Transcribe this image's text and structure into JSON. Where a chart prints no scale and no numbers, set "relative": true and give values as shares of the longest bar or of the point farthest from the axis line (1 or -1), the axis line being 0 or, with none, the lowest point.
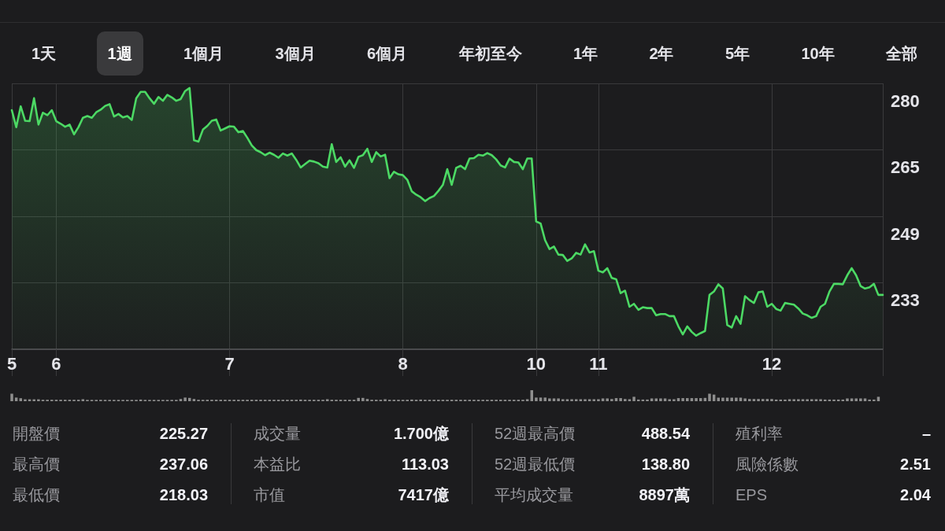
{
  "chart_data": [
    {
      "type": "other",
      "annotations": [
        "1天",
        "1週",
        "1個月",
        "3個月",
        "6個月",
        "年初至今",
        "1年",
        "2年",
        "5年",
        "10年",
        "全部"
      ]
    },
    {
      "type": "area",
      "categories": [
        "5",
        null,
        null,
        null,
        null,
        null,
        null,
        null,
        null,
        null,
        "6",
        null,
        null,
        null,
        null,
        null,
        null,
        null,
        null,
        null,
        null,
        null,
        null,
        null,
        null,
        null,
        null,
        null,
        null,
        null,
        null,
        null,
        null,
        null,
        null,
        null,
        null,
        null,
        null,
        null,
        null,
        null,
        null,
        null,
        null,
        null,
        null,
        null,
        null,
        "7",
        null,
        null,
        null,
        null,
        null,
        null,
        null,
        null,
        null,
        null,
        null,
        null,
        null,
        null,
        null,
        null,
        null,
        null,
        null,
        null,
        null,
        null,
        null,
        null,
        null,
        null,
        null,
        null,
        null,
        null,
        null,
        null,
        null,
        null,
        null,
        null,
        null,
        null,
        "8",
        null,
        null,
        null,
        null,
        null,
        null,
        null,
        null,
        null,
        null,
        null,
        null,
        null,
        null,
        null,
        null,
        null,
        null,
        null,
        null,
        null,
        null,
        null,
        null,
        null,
        null,
        null,
        null,
        null,
        "10",
        null,
        null,
        null,
        null,
        null,
        null,
        null,
        null,
        null,
        null,
        null,
        null,
        null,
        "11",
        null,
        null,
        null,
        null,
        null,
        null,
        null,
        null,
        null,
        null,
        null,
        null,
        null,
        null,
        null,
        null,
        null,
        null,
        null,
        null,
        null,
        null,
        null,
        null,
        null,
        null,
        null,
        null,
        null,
        null,
        null,
        null,
        null,
        null,
        null,
        null,
        null,
        null,
        "12",
        null,
        null,
        null,
        null,
        null,
        null,
        null,
        null,
        null,
        null,
        null,
        null,
        null,
        null,
        null,
        null,
        null,
        null,
        null,
        null,
        null,
        null,
        null,
        null,
        null
      ],
      "values": [
        273.9,
        269.9,
        274.8,
        271.4,
        271.3,
        276.7,
        270.5,
        273.3,
        272.7,
        273.9,
        271.3,
        270.7,
        270.0,
        270.5,
        268.2,
        269.9,
        272.1,
        272.5,
        272.1,
        273.4,
        274.0,
        274.9,
        275.3,
        272.4,
        273.0,
        272.2,
        272.5,
        271.6,
        276.7,
        278.2,
        278.2,
        276.7,
        275.4,
        277.0,
        276.1,
        277.5,
        276.9,
        276.1,
        276.5,
        278.4,
        279.1,
        266.8,
        266.5,
        269.3,
        270.2,
        271.4,
        271.7,
        269.1,
        269.6,
        270.1,
        270.0,
        268.7,
        269.0,
        267.4,
        265.6,
        264.5,
        264.0,
        263.3,
        263.9,
        263.4,
        262.7,
        263.7,
        263.2,
        263.7,
        262.2,
        260.4,
        261.2,
        262.0,
        261.8,
        261.4,
        260.6,
        260.4,
        265.9,
        261.7,
        262.8,
        260.6,
        262.1,
        260.3,
        262.9,
        263.3,
        264.8,
        261.7,
        264.0,
        263.0,
        263.4,
        257.9,
        259.4,
        258.8,
        258.6,
        257.5,
        254.8,
        254.0,
        253.4,
        252.5,
        253.2,
        253.7,
        254.9,
        256.3,
        260.0,
        256.3,
        260.3,
        260.8,
        260.0,
        262.5,
        262.6,
        263.4,
        263.2,
        263.8,
        263.3,
        262.3,
        260.9,
        260.4,
        262.5,
        261.7,
        261.6,
        260.0,
        262.5,
        262.5,
        247.7,
        247.2,
        243.3,
        241.2,
        241.8,
        239.9,
        239.8,
        238.4,
        239.0,
        240.3,
        239.9,
        242.3,
        240.4,
        240.7,
        236.1,
        235.7,
        236.7,
        234.4,
        234.1,
        230.8,
        231.4,
        227.6,
        228.3,
        226.9,
        227.5,
        227.3,
        227.3,
        225.6,
        225.9,
        225.9,
        225.4,
        225.4,
        223.0,
        221.1,
        223.0,
        221.7,
        220.8,
        221.4,
        221.9,
        230.4,
        231.2,
        232.9,
        231.9,
        223.3,
        222.7,
        225.4,
        223.6,
        230.1,
        229.2,
        228.5,
        231.0,
        231.2,
        227.6,
        228.3,
        227.1,
        226.7,
        228.5,
        228.3,
        228.1,
        227.2,
        226.0,
        225.6,
        225.0,
        225.4,
        227.6,
        228.3,
        231.2,
        233.0,
        233.0,
        232.9,
        235.0,
        236.7,
        235.0,
        232.5,
        231.9,
        232.2,
        233.0,
        230.4,
        230.4
      ],
      "color": "#4cd964",
      "ylim": [
        217.6,
        280.2
      ],
      "yticks": [
        {
          "value": 233.25,
          "label": "233"
        },
        {
          "value": 248.9,
          "label": "249"
        },
        {
          "value": 264.55,
          "label": "265"
        },
        {
          "value": 280.2,
          "label": "280"
        }
      ],
      "grid": true,
      "marker": "none"
    },
    {
      "type": "bar",
      "relative": true,
      "categories": [
        null,
        null,
        null,
        null,
        null,
        null,
        null,
        null,
        null,
        null,
        null,
        null,
        null,
        null,
        null,
        null,
        null,
        null,
        null,
        null,
        null,
        null,
        null,
        null,
        null,
        null,
        null,
        null,
        null,
        null,
        null,
        null,
        null,
        null,
        null,
        null,
        null,
        null,
        null,
        null,
        null,
        null,
        null,
        null,
        null,
        null,
        null,
        null,
        null,
        null,
        null,
        null,
        null,
        null,
        null,
        null,
        null,
        null,
        null,
        null,
        null,
        null,
        null,
        null,
        null,
        null,
        null,
        null,
        null,
        null,
        null,
        null,
        null,
        null,
        null,
        null,
        null,
        null,
        null,
        null,
        null,
        null,
        null,
        null,
        null,
        null,
        null,
        null,
        null,
        null,
        null,
        null,
        null,
        null,
        null,
        null,
        null,
        null,
        null,
        null,
        null,
        null,
        null,
        null,
        null,
        null,
        null,
        null,
        null,
        null,
        null,
        null,
        null,
        null,
        null,
        null,
        null,
        null,
        null,
        null,
        null,
        null,
        null,
        null,
        null,
        null,
        null,
        null,
        null,
        null,
        null,
        null,
        null,
        null,
        null,
        null,
        null,
        null,
        null,
        null,
        null,
        null,
        null,
        null,
        null,
        null,
        null,
        null,
        null,
        null,
        null,
        null,
        null,
        null,
        null,
        null,
        null,
        null,
        null,
        null,
        null,
        null,
        null,
        null,
        null,
        null,
        null,
        null,
        null,
        null,
        null,
        null,
        null,
        null,
        null,
        null,
        null,
        null,
        null,
        null,
        null,
        null,
        null,
        null,
        null,
        null,
        null,
        null,
        null,
        null,
        null,
        null,
        null,
        null,
        null,
        null,
        null
      ],
      "values": [
        0.68,
        0.33,
        0.27,
        0.17,
        0.17,
        0.17,
        0.17,
        0.13,
        0.13,
        0.13,
        0.13,
        0.13,
        0.13,
        0.13,
        0.13,
        0.13,
        0.18,
        0.12,
        0.12,
        0.12,
        0.12,
        0.12,
        0.12,
        0.12,
        0.12,
        0.12,
        0.12,
        0.12,
        0.12,
        0.15,
        0.12,
        0.12,
        0.12,
        0.12,
        0.12,
        0.12,
        0.12,
        0.12,
        0.2,
        0.33,
        0.3,
        0.2,
        0.13,
        0.13,
        0.13,
        0.13,
        0.13,
        0.13,
        0.13,
        0.13,
        0.13,
        0.13,
        0.13,
        0.13,
        0.13,
        0.13,
        0.13,
        0.13,
        0.13,
        0.13,
        0.13,
        0.13,
        0.13,
        0.13,
        0.13,
        0.15,
        0.13,
        0.13,
        0.13,
        0.13,
        0.13,
        0.18,
        0.13,
        0.13,
        0.13,
        0.13,
        0.13,
        0.13,
        0.3,
        0.3,
        0.2,
        0.13,
        0.13,
        0.13,
        0.18,
        0.13,
        0.13,
        0.13,
        0.13,
        0.13,
        0.15,
        0.13,
        0.15,
        0.13,
        0.13,
        0.13,
        0.13,
        0.13,
        0.13,
        0.13,
        0.13,
        0.13,
        0.13,
        0.13,
        0.13,
        0.13,
        0.13,
        0.13,
        0.13,
        0.13,
        0.13,
        0.13,
        0.13,
        0.13,
        0.13,
        0.13,
        0.18,
        1,
        0.33,
        0.33,
        0.33,
        0.25,
        0.25,
        0.25,
        0.18,
        0.18,
        0.18,
        0.18,
        0.18,
        0.18,
        0.18,
        0.18,
        0.18,
        0.25,
        0.25,
        0.2,
        0.28,
        0.28,
        0.2,
        0.18,
        0.4,
        0.15,
        0.15,
        0.15,
        0.25,
        0.25,
        0.25,
        0.25,
        0.18,
        0.18,
        0.28,
        0.28,
        0.28,
        0.28,
        0.28,
        0.28,
        0.3,
        0.68,
        0.6,
        0.32,
        0.32,
        0.32,
        0.32,
        0.32,
        0.32,
        0.25,
        0.2,
        0.2,
        0.2,
        0.2,
        0.2,
        0.2,
        0.15,
        0.15,
        0.15,
        0.18,
        0.18,
        0.18,
        0.18,
        0.18,
        0.18,
        0.18,
        0.18,
        0.15,
        0.15,
        0.15,
        0.15,
        0.15,
        0.25,
        0.25,
        0.25,
        0.25,
        0.25,
        0.15,
        0.15,
        0.4,
        null
      ],
      "color": "#8e8e8e"
    },
    {
      "type": "other",
      "annotations": [
        "開盤價",
        "225.27",
        "最高價",
        "237.06",
        "最低價",
        "218.03",
        "成交量",
        "1.700億",
        "本益比",
        "113.03",
        "市值",
        "7417億",
        "52週最高價",
        "488.54",
        "52週最低價",
        "138.80",
        "平均成交量",
        "8897萬",
        "殖利率",
        "–",
        "風險係數",
        "2.51",
        "EPS",
        "2.04"
      ]
    }
  ]
}
